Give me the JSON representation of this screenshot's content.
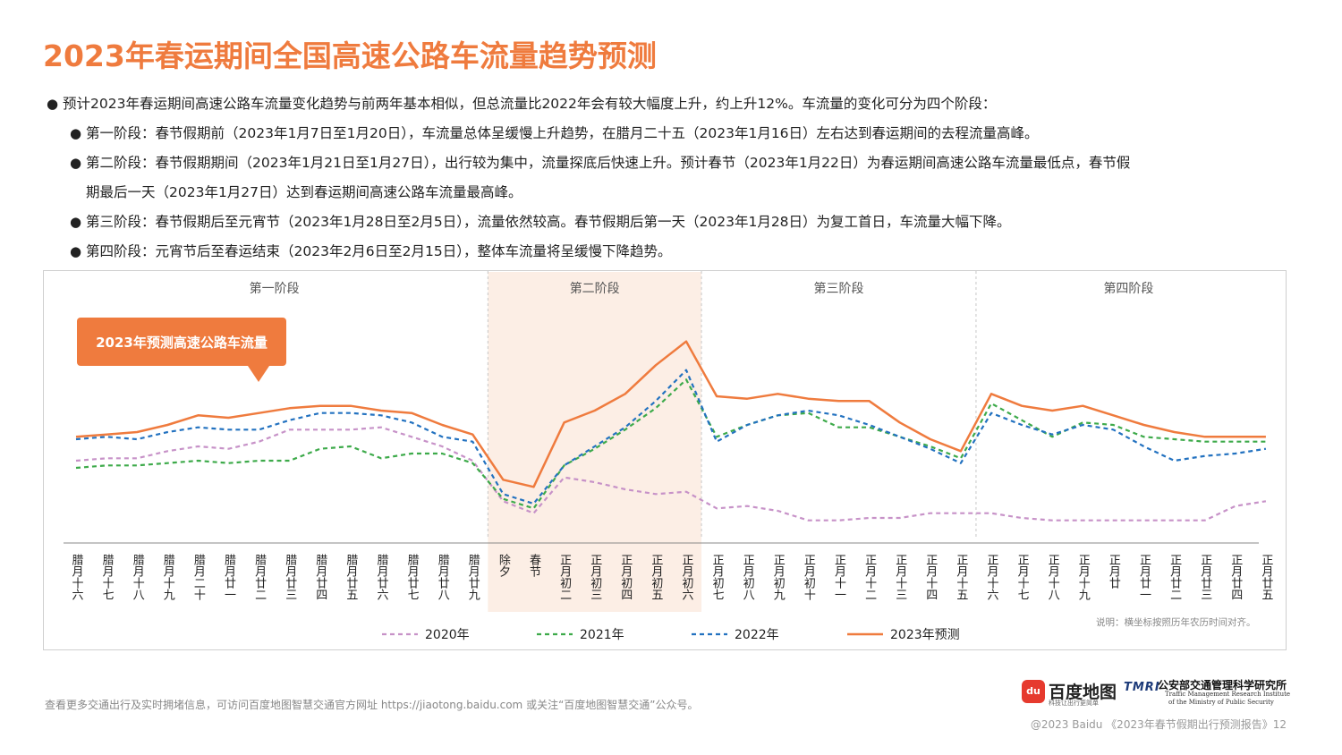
{
  "title": "2023年春运期间全国高速公路车流量趋势预测",
  "bullets": [
    {
      "level": 1,
      "text": "预计2023年春运期间高速公路车流量变化趋势与前两年基本相似，但总流量比2022年会有较大幅度上升，约上升12%。车流量的变化可分为四个阶段："
    },
    {
      "level": 2,
      "text": "第一阶段：春节假期前（2023年1月7日至1月20日），车流量总体呈缓慢上升趋势，在腊月二十五（2023年1月16日）左右达到春运期间的去程流量高峰。"
    },
    {
      "level": 2,
      "text": "第二阶段：春节假期期间（2023年1月21日至1月27日），出行较为集中，流量探底后快速上升。预计春节（2023年1月22日）为春运期间高速公路车流量最低点，春节假"
    },
    {
      "level": "cont",
      "text": "期最后一天（2023年1月27日）达到春运期间高速公路车流量最高峰。"
    },
    {
      "level": 2,
      "text": "第三阶段：春节假期后至元宵节（2023年1月28日至2月5日），流量依然较高。春节假期后第一天（2023年1月28日）为复工首日，车流量大幅下降。"
    },
    {
      "level": 2,
      "text": "第四阶段：元宵节后至春运结束（2023年2月6日至2月15日），整体车流量将呈缓慢下降趋势。"
    }
  ],
  "chart_data": {
    "type": "line",
    "categories": [
      "腊月十六",
      "腊月十七",
      "腊月十八",
      "腊月十九",
      "腊月二十",
      "腊月廿一",
      "腊月廿二",
      "腊月廿三",
      "腊月廿四",
      "腊月廿五",
      "腊月廿六",
      "腊月廿七",
      "腊月廿八",
      "腊月廿九",
      "除夕",
      "春节",
      "正月初二",
      "正月初三",
      "正月初四",
      "正月初五",
      "正月初六",
      "正月初七",
      "正月初八",
      "正月初九",
      "正月初十",
      "正月十一",
      "正月十二",
      "正月十三",
      "正月十四",
      "正月十五",
      "正月十六",
      "正月十七",
      "正月十八",
      "正月十九",
      "正月廿",
      "正月廿一",
      "正月廿二",
      "正月廿三",
      "正月廿四",
      "正月廿五"
    ],
    "phases": [
      {
        "label": "第一阶段",
        "start": 0,
        "end": 13
      },
      {
        "label": "第二阶段",
        "start": 14,
        "end": 20
      },
      {
        "label": "第三阶段",
        "start": 21,
        "end": 29
      },
      {
        "label": "第四阶段",
        "start": 30,
        "end": 39
      }
    ],
    "highlight_phase": 1,
    "series": [
      {
        "name": "2020年",
        "color": "#c792c8",
        "dash": "dash",
        "values": [
          23,
          24,
          24,
          27,
          29,
          28,
          31,
          36,
          36,
          36,
          37,
          33,
          29,
          23,
          6,
          1,
          16,
          14,
          11,
          9,
          10,
          3,
          4,
          2,
          -2,
          -2,
          -1,
          -1,
          1,
          1,
          1,
          -1,
          -2,
          -2,
          -2,
          -2,
          -2,
          -2,
          4,
          6
        ]
      },
      {
        "name": "2021年",
        "color": "#3daa4a",
        "dash": "dash",
        "values": [
          20,
          21,
          21,
          22,
          23,
          22,
          23,
          23,
          28,
          29,
          24,
          26,
          26,
          22,
          7,
          3,
          21,
          28,
          36,
          45,
          57,
          33,
          38,
          42,
          43,
          37,
          37,
          33,
          29,
          24,
          47,
          40,
          33,
          39,
          38,
          33,
          32,
          31,
          31,
          31
        ]
      },
      {
        "name": "2022年",
        "color": "#2372c0",
        "dash": "dash",
        "values": [
          32,
          33,
          32,
          35,
          37,
          36,
          36,
          40,
          43,
          43,
          42,
          39,
          33,
          31,
          9,
          5,
          21,
          29,
          37,
          48,
          61,
          31,
          38,
          42,
          44,
          42,
          38,
          33,
          28,
          22,
          43,
          38,
          34,
          38,
          36,
          29,
          23,
          25,
          26,
          28
        ]
      },
      {
        "name": "2023年预测",
        "color": "#ef7b3e",
        "dash": "solid",
        "values": [
          33,
          34,
          35,
          38,
          42,
          41,
          43,
          45,
          46,
          46,
          44,
          43,
          38,
          34,
          15,
          12,
          39,
          44,
          51,
          63,
          73,
          50,
          49,
          51,
          49,
          48,
          48,
          39,
          32,
          27,
          51,
          46,
          44,
          46,
          42,
          38,
          35,
          33,
          33,
          33
        ]
      }
    ],
    "ylim": [
      -10,
      80
    ],
    "callout": "2023年预测高速公路车流量",
    "note": "说明：横坐标按照历年农历时间对齐。"
  },
  "footer": {
    "left": "查看更多交通出行及实时拥堵信息，可访问百度地图智慧交通官方网址 https://jiaotong.baidu.com 或关注“百度地图智慧交通”公众号。",
    "right": "@2023 Baidu 《2023年春节假期出行预测报告》12"
  },
  "logos": {
    "baidu_icon": "du",
    "baidu_name": "百度地图",
    "baidu_slogan": "科技让出行更简单",
    "tmri_mark": "TMRI",
    "tmri_cn": "公安部交通管理科学研究所",
    "tmri_en1": "Traffic Management Research Institute",
    "tmri_en2": "of the Ministry of Public Security"
  }
}
